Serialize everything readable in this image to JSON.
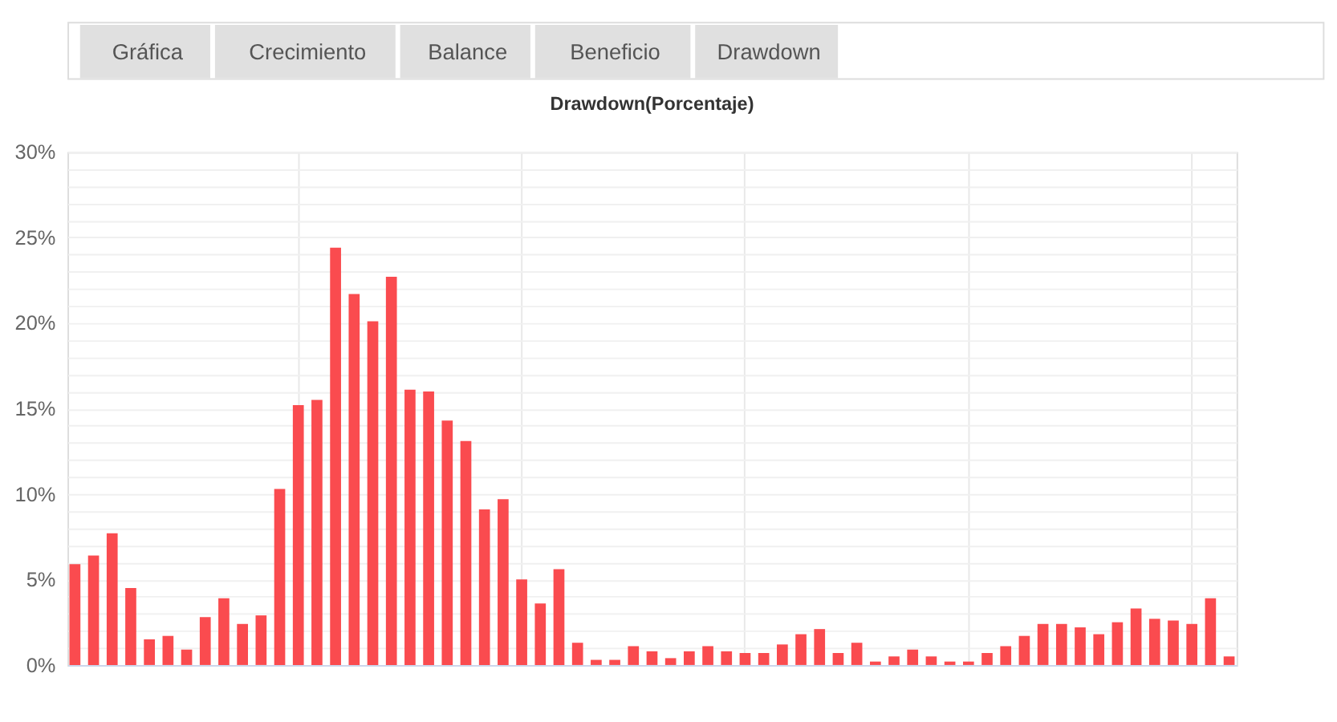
{
  "chart_data": {
    "type": "bar",
    "title": "Drawdown(Porcentaje)",
    "annotations": [
      "Gráfica",
      "Crecimiento",
      "Balance",
      "Beneficio",
      "Drawdown"
    ],
    "categories": [
      null,
      null,
      null,
      null,
      null,
      null,
      null,
      null,
      null,
      null,
      null,
      null,
      null,
      null,
      null,
      null,
      null,
      null,
      null,
      null,
      null,
      null,
      null,
      null,
      null,
      null,
      null,
      null,
      null,
      null,
      null,
      null,
      null,
      null,
      null,
      null,
      null,
      null,
      null,
      null,
      null,
      null,
      null,
      null,
      null,
      null,
      null,
      null,
      null,
      null,
      null,
      null,
      null,
      null,
      null,
      null,
      null,
      null,
      null,
      null,
      null,
      null,
      null
    ],
    "values": [
      5.9,
      6.4,
      7.7,
      4.5,
      1.5,
      1.7,
      0.9,
      2.8,
      3.9,
      2.4,
      2.9,
      10.3,
      15.2,
      15.5,
      24.4,
      21.7,
      20.1,
      22.7,
      16.1,
      16.0,
      14.3,
      13.1,
      9.1,
      9.7,
      5.0,
      3.6,
      5.6,
      1.3,
      0.3,
      0.3,
      1.1,
      0.8,
      0.4,
      0.8,
      1.1,
      0.8,
      0.7,
      0.7,
      1.2,
      1.8,
      2.1,
      0.7,
      1.3,
      0.2,
      0.5,
      0.9,
      0.5,
      0.2,
      0.2,
      0.7,
      1.1,
      1.7,
      2.4,
      2.4,
      2.2,
      1.8,
      2.5,
      3.3,
      2.7,
      2.6,
      2.4,
      3.9,
      0.5
    ],
    "color": "#fa4b4f",
    "ylim": [
      0,
      30
    ],
    "yticks": [
      {
        "value": 0,
        "label": "0%"
      },
      {
        "value": 1,
        "label": null
      },
      {
        "value": 2,
        "label": null
      },
      {
        "value": 3,
        "label": null
      },
      {
        "value": 4,
        "label": null
      },
      {
        "value": 5,
        "label": "5%"
      },
      {
        "value": 6,
        "label": null
      },
      {
        "value": 7,
        "label": null
      },
      {
        "value": 8,
        "label": null
      },
      {
        "value": 9,
        "label": null
      },
      {
        "value": 10,
        "label": "10%"
      },
      {
        "value": 11,
        "label": null
      },
      {
        "value": 12,
        "label": null
      },
      {
        "value": 13,
        "label": null
      },
      {
        "value": 14,
        "label": null
      },
      {
        "value": 15,
        "label": "15%"
      },
      {
        "value": 16,
        "label": null
      },
      {
        "value": 17,
        "label": null
      },
      {
        "value": 18,
        "label": null
      },
      {
        "value": 19,
        "label": null
      },
      {
        "value": 20,
        "label": "20%"
      },
      {
        "value": 21,
        "label": null
      },
      {
        "value": 22,
        "label": null
      },
      {
        "value": 23,
        "label": null
      },
      {
        "value": 24,
        "label": null
      },
      {
        "value": 25,
        "label": "25%"
      },
      {
        "value": 26,
        "label": null
      },
      {
        "value": 27,
        "label": null
      },
      {
        "value": 28,
        "label": null
      },
      {
        "value": 29,
        "label": null
      },
      {
        "value": 30,
        "label": "30%"
      }
    ],
    "grid": true
  }
}
